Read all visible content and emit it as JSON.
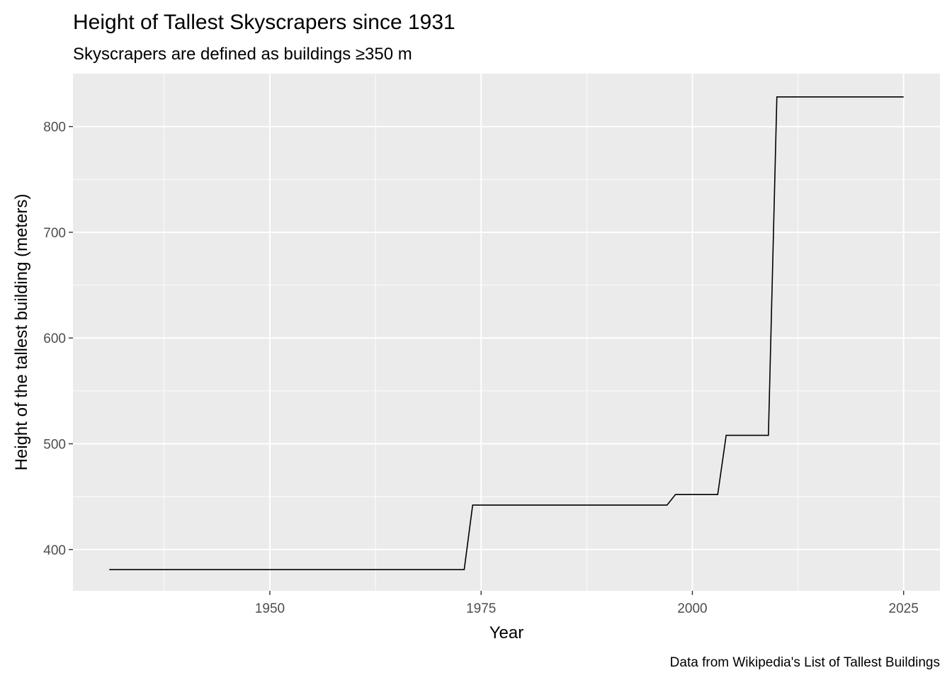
{
  "chart_data": {
    "type": "line",
    "step": true,
    "title": "Height of Tallest Skyscrapers since 1931",
    "subtitle": "Skyscrapers are defined as buildings ≥350 m",
    "xlabel": "Year",
    "ylabel": "Height of the tallest building (meters)",
    "caption": "Data from Wikipedia's List of Tallest Buildings",
    "xlim": [
      1926.7,
      2029.3
    ],
    "ylim": [
      361,
      850
    ],
    "x_ticks": [
      1950,
      1975,
      2000,
      2025
    ],
    "y_ticks": [
      400,
      500,
      600,
      700,
      800
    ],
    "x_minor": [
      1937.5,
      1962.5,
      1987.5,
      2012.5
    ],
    "y_minor": [
      450,
      550,
      650,
      750
    ],
    "grid": true,
    "background": "#ebebeb",
    "grid_color": "#ffffff",
    "line_color": "#000000",
    "series": [
      {
        "x": [
          1931,
          1973,
          1974,
          1997,
          1998,
          2003,
          2004,
          2009,
          2010,
          2025
        ],
        "y": [
          381,
          381,
          442,
          442,
          452,
          452,
          508,
          508,
          828,
          828
        ]
      }
    ]
  }
}
